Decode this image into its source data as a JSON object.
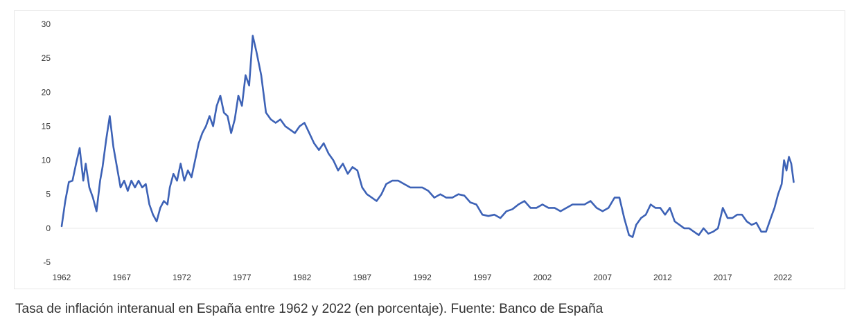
{
  "caption": "Tasa de inflación interanual en España entre 1962 y 2022 (en porcentaje). Fuente: Banco de España",
  "chart_data": {
    "type": "line",
    "title": "",
    "xlabel": "",
    "ylabel": "",
    "xlim": [
      1962,
      2024.6
    ],
    "ylim": [
      -5,
      30
    ],
    "x_ticks": [
      1962,
      1967,
      1972,
      1977,
      1982,
      1987,
      1992,
      1997,
      2002,
      2007,
      2012,
      2017,
      2022
    ],
    "y_ticks": [
      30,
      25,
      20,
      15,
      10,
      5,
      0,
      -5
    ],
    "grid": false,
    "colors": {
      "line": "#3d62b6",
      "zero_line": "#e6e6e6"
    },
    "series": [
      {
        "x": [
          1962.0,
          1962.3,
          1962.6,
          1962.9,
          1963.2,
          1963.5,
          1963.8,
          1964.0,
          1964.3,
          1964.6,
          1964.9,
          1965.2,
          1965.4,
          1965.7,
          1966.0,
          1966.3,
          1966.6,
          1966.9,
          1967.2,
          1967.5,
          1967.8,
          1968.1,
          1968.4,
          1968.7,
          1969.0,
          1969.3,
          1969.6,
          1969.9,
          1970.2,
          1970.5,
          1970.8,
          1971.0,
          1971.3,
          1971.6,
          1971.9,
          1972.2,
          1972.5,
          1972.8,
          1973.1,
          1973.4,
          1973.7,
          1974.0,
          1974.3,
          1974.6,
          1974.9,
          1975.2,
          1975.5,
          1975.8,
          1976.1,
          1976.4,
          1976.7,
          1977.0,
          1977.3,
          1977.6,
          1977.9,
          1978.2,
          1978.6,
          1979.0,
          1979.4,
          1979.8,
          1980.2,
          1980.6,
          1981.0,
          1981.4,
          1981.8,
          1982.2,
          1982.6,
          1983.0,
          1983.4,
          1983.8,
          1984.2,
          1984.6,
          1985.0,
          1985.4,
          1985.8,
          1986.2,
          1986.6,
          1987.0,
          1987.4,
          1987.8,
          1988.2,
          1988.6,
          1989.0,
          1989.5,
          1990.0,
          1990.5,
          1991.0,
          1991.5,
          1992.0,
          1992.5,
          1993.0,
          1993.5,
          1994.0,
          1994.5,
          1995.0,
          1995.5,
          1996.0,
          1996.5,
          1997.0,
          1997.5,
          1998.0,
          1998.5,
          1999.0,
          1999.5,
          2000.0,
          2000.5,
          2001.0,
          2001.5,
          2002.0,
          2002.5,
          2003.0,
          2003.5,
          2004.0,
          2004.5,
          2005.0,
          2005.5,
          2006.0,
          2006.5,
          2007.0,
          2007.5,
          2008.0,
          2008.4,
          2008.8,
          2009.2,
          2009.5,
          2009.8,
          2010.2,
          2010.6,
          2011.0,
          2011.4,
          2011.8,
          2012.2,
          2012.6,
          2013.0,
          2013.4,
          2013.8,
          2014.2,
          2014.6,
          2015.0,
          2015.4,
          2015.8,
          2016.2,
          2016.6,
          2017.0,
          2017.4,
          2017.8,
          2018.2,
          2018.6,
          2019.0,
          2019.4,
          2019.8,
          2020.2,
          2020.6,
          2021.0,
          2021.3,
          2021.6,
          2021.9,
          2022.1,
          2022.3,
          2022.5,
          2022.7,
          2022.9
        ],
        "values": [
          0.3,
          4.0,
          6.8,
          7.0,
          9.5,
          11.8,
          7.0,
          9.5,
          6.0,
          4.5,
          2.5,
          7.0,
          9.0,
          13.0,
          16.5,
          12.0,
          9.0,
          6.0,
          7.0,
          5.5,
          7.0,
          6.0,
          7.0,
          6.0,
          6.5,
          3.5,
          2.0,
          1.0,
          3.0,
          4.0,
          3.5,
          6.0,
          8.0,
          7.0,
          9.5,
          7.0,
          8.5,
          7.5,
          10.0,
          12.5,
          14.0,
          15.0,
          16.5,
          15.0,
          18.0,
          19.5,
          17.0,
          16.5,
          14.0,
          16.0,
          19.5,
          18.0,
          22.5,
          21.0,
          28.3,
          26.0,
          22.5,
          17.0,
          16.0,
          15.5,
          16.0,
          15.0,
          14.5,
          14.0,
          15.0,
          15.5,
          14.0,
          12.5,
          11.5,
          12.5,
          11.0,
          10.0,
          8.5,
          9.5,
          8.0,
          9.0,
          8.5,
          6.0,
          5.0,
          4.5,
          4.0,
          5.0,
          6.5,
          7.0,
          7.0,
          6.5,
          6.0,
          6.0,
          6.0,
          5.5,
          4.5,
          5.0,
          4.5,
          4.5,
          5.0,
          4.8,
          3.8,
          3.5,
          2.0,
          1.8,
          2.0,
          1.5,
          2.5,
          2.8,
          3.5,
          4.0,
          3.0,
          3.0,
          3.5,
          3.0,
          3.0,
          2.5,
          3.0,
          3.5,
          3.5,
          3.5,
          4.0,
          3.0,
          2.5,
          3.0,
          4.5,
          4.5,
          1.5,
          -1.0,
          -1.3,
          0.5,
          1.5,
          2.0,
          3.5,
          3.0,
          3.0,
          2.0,
          3.0,
          1.0,
          0.5,
          0.0,
          0.0,
          -0.5,
          -1.0,
          0.0,
          -0.8,
          -0.5,
          0.0,
          3.0,
          1.5,
          1.5,
          2.0,
          2.0,
          1.0,
          0.5,
          0.8,
          -0.5,
          -0.5,
          1.5,
          3.0,
          5.0,
          6.5,
          10.0,
          8.5,
          10.5,
          9.5,
          6.8
        ]
      }
    ]
  }
}
